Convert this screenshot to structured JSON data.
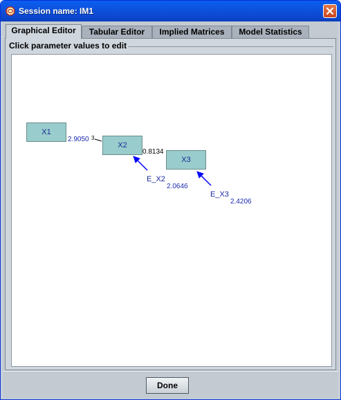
{
  "window": {
    "title": "Session name: IM1"
  },
  "tabs": [
    {
      "label": "Graphical Editor",
      "active": true
    },
    {
      "label": "Tabular Editor",
      "active": false
    },
    {
      "label": "Implied Matrices",
      "active": false
    },
    {
      "label": "Model Statistics",
      "active": false
    }
  ],
  "panel": {
    "group_label": "Click parameter values to edit"
  },
  "graph": {
    "nodes": {
      "x1": "X1",
      "x2": "X2",
      "x3": "X3"
    },
    "edges": {
      "x1_x2": "2.9050",
      "x2_x3": "0.8134"
    },
    "edge_fragment": "3",
    "errors": {
      "e_x2": {
        "label": "E_X2",
        "value": "2.0646"
      },
      "e_x3": {
        "label": "E_X3",
        "value": "2.4206"
      }
    },
    "node_fill": "#99cccc",
    "arrow_color": "#0000ff"
  },
  "footer": {
    "done_label": "Done"
  }
}
